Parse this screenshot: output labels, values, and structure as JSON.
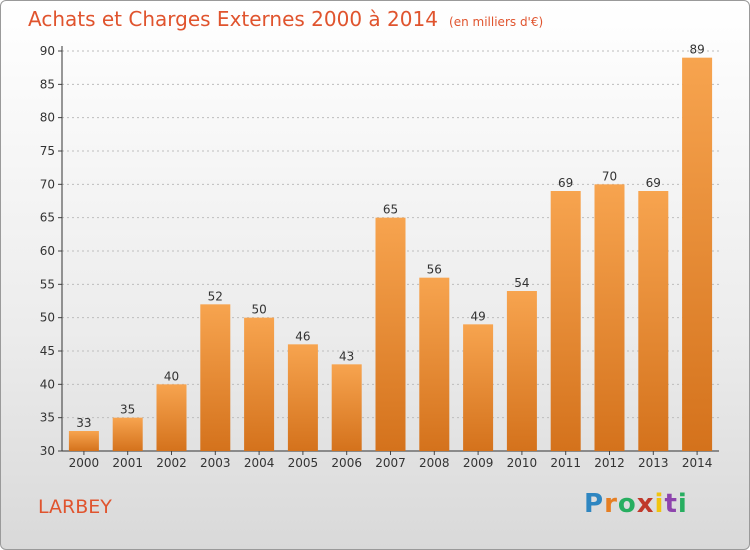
{
  "title": "Achats et Charges Externes 2000 à 2014",
  "unit": "(en milliers d'€)",
  "commune": "LARBEY",
  "logo": "Proxiti",
  "colors": {
    "bar_top": "#f7a44f",
    "bar_bottom": "#d4721c",
    "title": "#e0542e"
  },
  "chart_data": {
    "type": "bar",
    "title": "Achats et Charges Externes 2000 à 2014",
    "subtitle": "(en milliers d'€)",
    "xlabel": "",
    "ylabel": "",
    "categories": [
      "2000",
      "2001",
      "2002",
      "2003",
      "2004",
      "2005",
      "2006",
      "2007",
      "2008",
      "2009",
      "2010",
      "2011",
      "2012",
      "2013",
      "2014"
    ],
    "values": [
      33,
      35,
      40,
      52,
      50,
      46,
      43,
      65,
      56,
      49,
      54,
      69,
      70,
      69,
      89
    ],
    "ylim": [
      30,
      90
    ],
    "yticks": [
      30,
      35,
      40,
      45,
      50,
      55,
      60,
      65,
      70,
      75,
      80,
      85,
      90
    ],
    "grid": true,
    "data_labels": true
  }
}
